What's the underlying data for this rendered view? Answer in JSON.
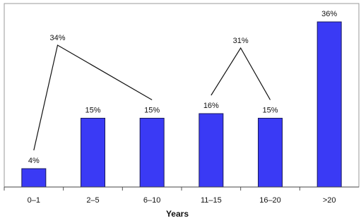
{
  "chart_data": {
    "type": "bar",
    "x_label": "Years",
    "categories": [
      "0–1",
      "2–5",
      "6–10",
      "11–15",
      "16–20",
      ">20"
    ],
    "values": [
      4,
      15,
      15,
      16,
      15,
      36
    ],
    "value_labels": [
      "4%",
      "15%",
      "15%",
      "16%",
      "15%",
      "36%"
    ],
    "color": "#3a3af5",
    "ylim": [
      0,
      40
    ],
    "annotations": [
      "34%",
      "31%"
    ]
  }
}
